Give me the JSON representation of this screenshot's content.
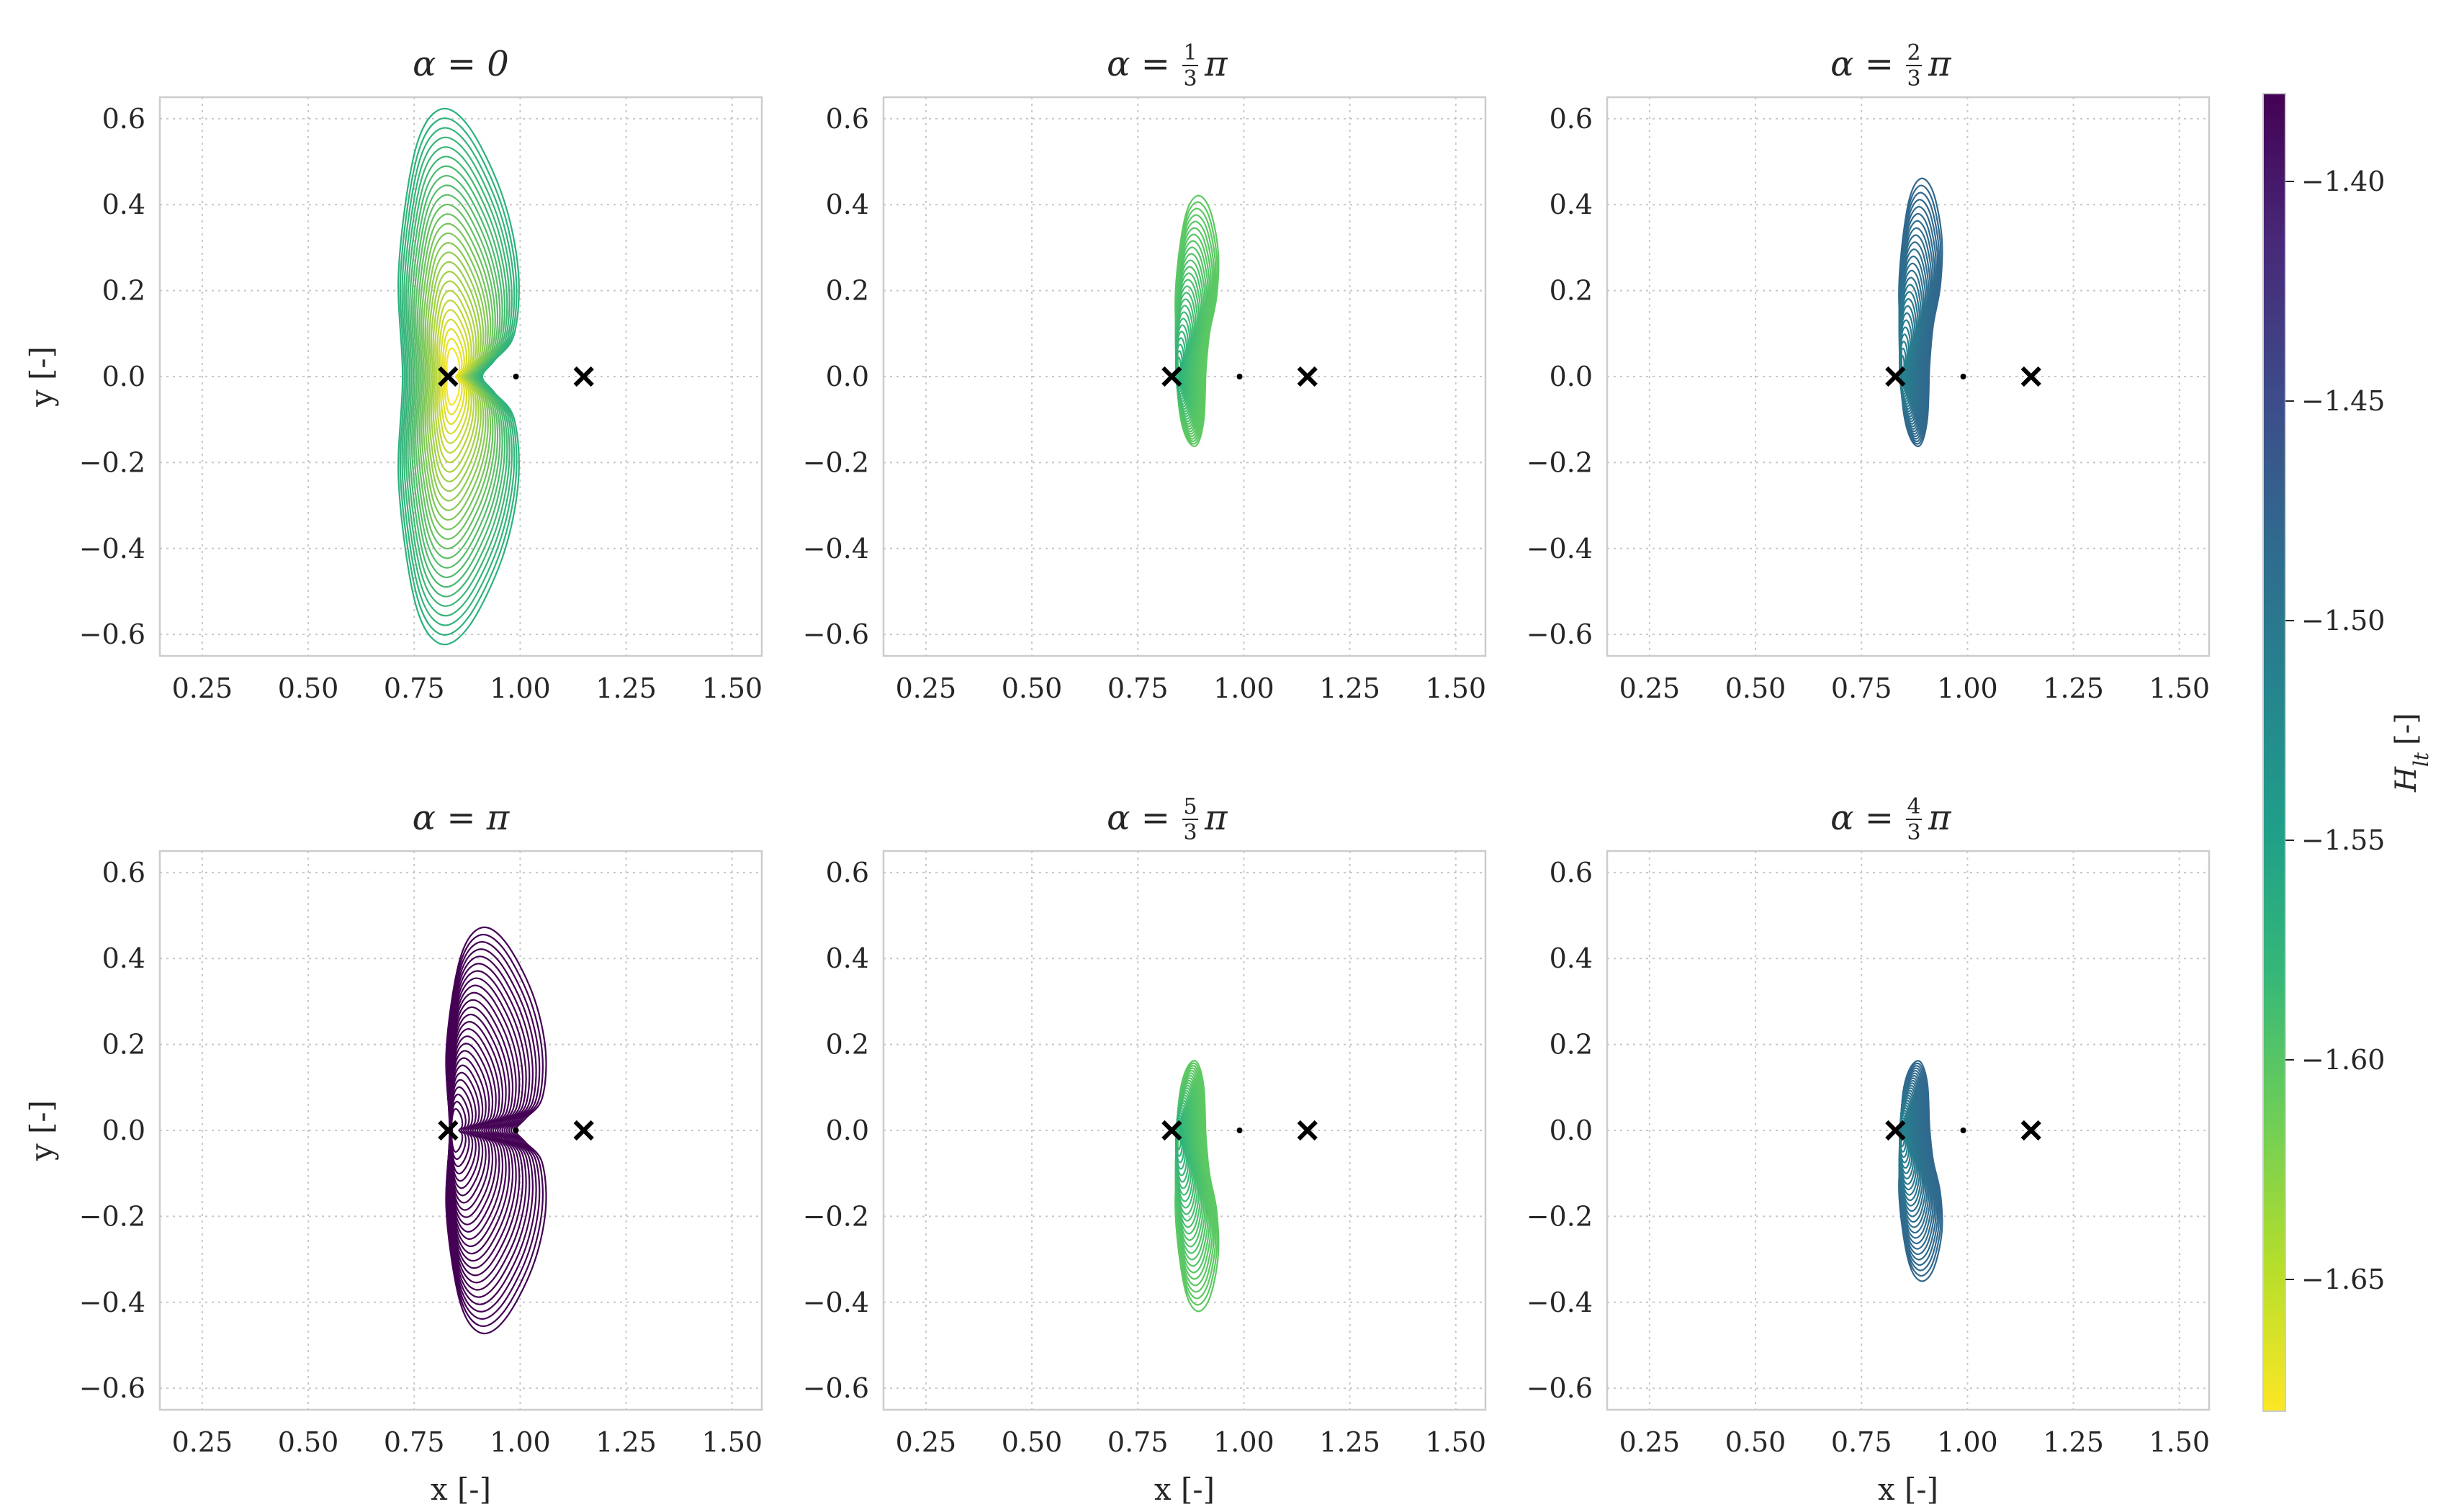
{
  "chart_data": [
    {
      "type": "contour",
      "title": "α = 0",
      "title_parts": {
        "lhs": "α",
        "eq": "=",
        "num": "",
        "den": "",
        "tail": "0"
      },
      "color": "#2db27d",
      "inner_color": "#f5e51f",
      "x_extent": [
        0.61,
        1.08
      ],
      "y_extent": [
        -0.62,
        0.62
      ],
      "shape": "kidney",
      "markers_x": [
        0.83,
        0.99,
        1.15
      ],
      "xlim": [
        0.15,
        1.57
      ],
      "ylim": [
        -0.65,
        0.65
      ],
      "xticks": [
        0.25,
        0.5,
        0.75,
        1.0,
        1.25,
        1.5
      ],
      "yticks": [
        0.6,
        0.4,
        0.2,
        0.0,
        -0.2,
        -0.4,
        -0.6
      ],
      "xlabel": "",
      "ylabel": "y [-]",
      "grid": true
    },
    {
      "type": "contour",
      "title": "α = 1/3 π",
      "title_parts": {
        "lhs": "α",
        "eq": "=",
        "num": "1",
        "den": "3",
        "tail": "π"
      },
      "color": "#5ec962",
      "inner_color": "#2db27d",
      "x_extent": [
        0.8,
        0.97
      ],
      "y_extent": [
        -0.16,
        0.42
      ],
      "shape": "bean-up",
      "markers_x": [
        0.83,
        0.99,
        1.15
      ],
      "xlim": [
        0.15,
        1.57
      ],
      "ylim": [
        -0.65,
        0.65
      ],
      "xticks": [
        0.25,
        0.5,
        0.75,
        1.0,
        1.25,
        1.5
      ],
      "yticks": [
        0.6,
        0.4,
        0.2,
        0.0,
        -0.2,
        -0.4,
        -0.6
      ],
      "xlabel": "",
      "ylabel": "",
      "grid": true
    },
    {
      "type": "contour",
      "title": "α = 2/3 π",
      "title_parts": {
        "lhs": "α",
        "eq": "=",
        "num": "2",
        "den": "3",
        "tail": "π"
      },
      "color": "#31688e",
      "inner_color": "#26828e",
      "x_extent": [
        0.8,
        0.97
      ],
      "y_extent": [
        -0.16,
        0.46
      ],
      "shape": "bean-up",
      "markers_x": [
        0.83,
        0.99,
        1.15
      ],
      "xlim": [
        0.15,
        1.57
      ],
      "ylim": [
        -0.65,
        0.65
      ],
      "xticks": [
        0.25,
        0.5,
        0.75,
        1.0,
        1.25,
        1.5
      ],
      "yticks": [
        0.6,
        0.4,
        0.2,
        0.0,
        -0.2,
        -0.4,
        -0.6
      ],
      "xlabel": "",
      "ylabel": "",
      "grid": true
    },
    {
      "type": "contour",
      "title": "α = π",
      "title_parts": {
        "lhs": "α",
        "eq": "=",
        "num": "",
        "den": "",
        "tail": "π"
      },
      "color": "#440154",
      "inner_color": "#440154",
      "x_extent": [
        0.74,
        1.13
      ],
      "y_extent": [
        -0.47,
        0.47
      ],
      "shape": "kidney",
      "markers_x": [
        0.83,
        0.99,
        1.15
      ],
      "xlim": [
        0.15,
        1.57
      ],
      "ylim": [
        -0.65,
        0.65
      ],
      "xticks": [
        0.25,
        0.5,
        0.75,
        1.0,
        1.25,
        1.5
      ],
      "yticks": [
        0.6,
        0.4,
        0.2,
        0.0,
        -0.2,
        -0.4,
        -0.6
      ],
      "xlabel": "x [-]",
      "ylabel": "y [-]",
      "grid": true
    },
    {
      "type": "contour",
      "title": "α = 5/3 π",
      "title_parts": {
        "lhs": "α",
        "eq": "=",
        "num": "5",
        "den": "3",
        "tail": "π"
      },
      "color": "#5ec962",
      "inner_color": "#2db27d",
      "x_extent": [
        0.8,
        0.97
      ],
      "y_extent": [
        -0.42,
        0.16
      ],
      "shape": "bean-down",
      "markers_x": [
        0.83,
        0.99,
        1.15
      ],
      "xlim": [
        0.15,
        1.57
      ],
      "ylim": [
        -0.65,
        0.65
      ],
      "xticks": [
        0.25,
        0.5,
        0.75,
        1.0,
        1.25,
        1.5
      ],
      "yticks": [
        0.6,
        0.4,
        0.2,
        0.0,
        -0.2,
        -0.4,
        -0.6
      ],
      "xlabel": "x [-]",
      "ylabel": "",
      "grid": true
    },
    {
      "type": "contour",
      "title": "α = 4/3 π",
      "title_parts": {
        "lhs": "α",
        "eq": "=",
        "num": "4",
        "den": "3",
        "tail": "π"
      },
      "color": "#31688e",
      "inner_color": "#26828e",
      "x_extent": [
        0.8,
        0.97
      ],
      "y_extent": [
        -0.35,
        0.16
      ],
      "shape": "bean-down",
      "markers_x": [
        0.83,
        0.99,
        1.15
      ],
      "xlim": [
        0.15,
        1.57
      ],
      "ylim": [
        -0.65,
        0.65
      ],
      "xticks": [
        0.25,
        0.5,
        0.75,
        1.0,
        1.25,
        1.5
      ],
      "yticks": [
        0.6,
        0.4,
        0.2,
        0.0,
        -0.2,
        -0.4,
        -0.6
      ],
      "xlabel": "x [-]",
      "ylabel": "",
      "grid": true
    }
  ],
  "colorbar": {
    "label": "H_lt [-]",
    "label_main": "H",
    "label_sub": "lt",
    "label_unit": "[-]",
    "range": [
      -1.68,
      -1.38
    ],
    "ticks": [
      -1.4,
      -1.45,
      -1.5,
      -1.55,
      -1.6,
      -1.65
    ],
    "colormap": "viridis",
    "colors": [
      "#440154",
      "#482878",
      "#3e4989",
      "#31688e",
      "#26828e",
      "#1f9e89",
      "#35b779",
      "#6ece58",
      "#b5de2b",
      "#fde725"
    ]
  }
}
